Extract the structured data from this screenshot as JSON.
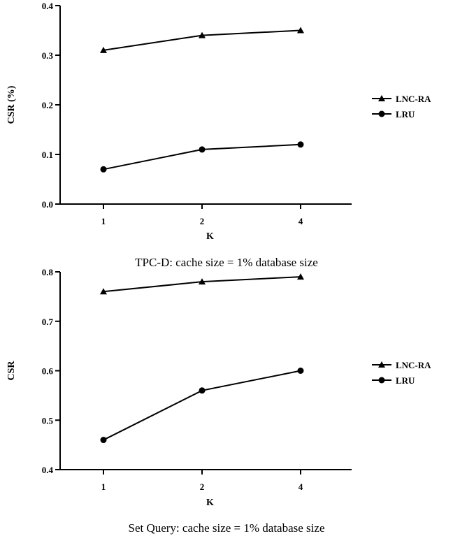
{
  "chart_data": [
    {
      "type": "line",
      "title": "TPC-D: cache size = 1% database size",
      "xlabel": "K",
      "ylabel": "CSR (%)",
      "categories": [
        "1",
        "2",
        "4"
      ],
      "ylim": [
        0.0,
        0.4
      ],
      "yticks": [
        "0.0",
        "0.1",
        "0.2",
        "0.3",
        "0.4"
      ],
      "series": [
        {
          "name": "LNC-RA",
          "marker": "triangle",
          "values": [
            0.31,
            0.34,
            0.35
          ]
        },
        {
          "name": "LRU",
          "marker": "circle",
          "values": [
            0.07,
            0.11,
            0.12
          ]
        }
      ],
      "legend": "right",
      "grid": false
    },
    {
      "type": "line",
      "title": "Set Query: cache size = 1% database size",
      "xlabel": "K",
      "ylabel": "CSR",
      "categories": [
        "1",
        "2",
        "4"
      ],
      "ylim": [
        0.4,
        0.8
      ],
      "yticks": [
        "0.4",
        "0.5",
        "0.6",
        "0.7",
        "0.8"
      ],
      "series": [
        {
          "name": "LNC-RA",
          "marker": "triangle",
          "values": [
            0.76,
            0.78,
            0.79
          ]
        },
        {
          "name": "LRU",
          "marker": "circle",
          "values": [
            0.46,
            0.56,
            0.6
          ]
        }
      ],
      "legend": "right",
      "grid": false
    }
  ]
}
